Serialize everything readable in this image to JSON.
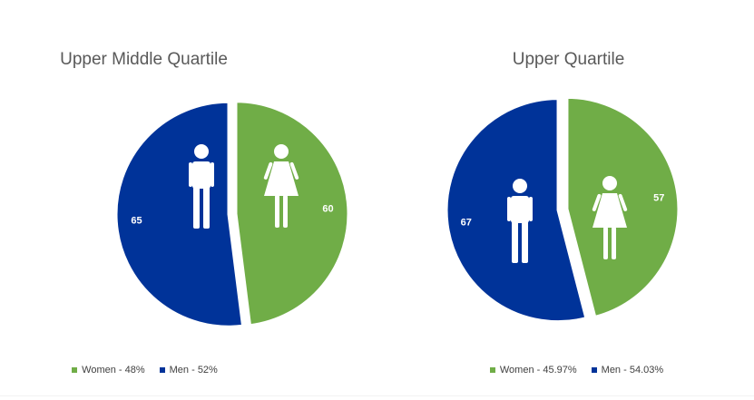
{
  "colors": {
    "women": "#70ad47",
    "men": "#003399",
    "label": "#ffffff"
  },
  "icons": {
    "women": "woman-figure-icon",
    "men": "man-figure-icon"
  },
  "chart_data": [
    {
      "type": "pie",
      "title": "Upper Middle Quartile",
      "slices": [
        {
          "name": "Women",
          "value": 60,
          "color": "#70ad47",
          "legend": "Women - 48%"
        },
        {
          "name": "Men",
          "value": 65,
          "color": "#003399",
          "legend": "Men - 52%"
        }
      ],
      "legend_position": "bottom"
    },
    {
      "type": "pie",
      "title": "Upper Quartile",
      "slices": [
        {
          "name": "Women",
          "value": 57,
          "color": "#70ad47",
          "legend": "Women - 45.97%"
        },
        {
          "name": "Men",
          "value": 67,
          "color": "#003399",
          "legend": "Men - 54.03%"
        }
      ],
      "legend_position": "bottom"
    }
  ]
}
